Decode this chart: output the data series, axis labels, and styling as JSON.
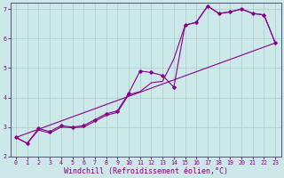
{
  "xlabel": "Windchill (Refroidissement éolien,°C)",
  "bg_color": "#cce8e8",
  "grid_color": "#aacccc",
  "line_color": "#880088",
  "xlim": [
    -0.5,
    23.5
  ],
  "ylim": [
    2.0,
    7.2
  ],
  "xticks": [
    0,
    1,
    2,
    3,
    4,
    5,
    6,
    7,
    8,
    9,
    10,
    11,
    12,
    13,
    14,
    15,
    16,
    17,
    18,
    19,
    20,
    21,
    22,
    23
  ],
  "yticks": [
    2,
    3,
    4,
    5,
    6,
    7
  ],
  "zigzag_x": [
    0,
    1,
    2,
    3,
    4,
    5,
    6,
    7,
    8,
    9,
    10,
    11,
    12,
    13,
    14,
    15,
    16,
    17,
    18,
    19,
    20,
    21,
    22,
    23
  ],
  "zigzag_y": [
    2.65,
    2.45,
    2.95,
    2.85,
    3.05,
    3.0,
    3.05,
    3.25,
    3.45,
    3.55,
    4.15,
    4.9,
    4.85,
    4.75,
    4.35,
    6.45,
    6.55,
    7.1,
    6.85,
    6.9,
    7.0,
    6.85,
    6.8,
    5.85
  ],
  "smooth_x": [
    0,
    1,
    2,
    3,
    4,
    5,
    6,
    7,
    8,
    9,
    10,
    11,
    12,
    13,
    14,
    15,
    16,
    17,
    18,
    19,
    20,
    21,
    22,
    23
  ],
  "smooth_y": [
    2.65,
    2.45,
    2.9,
    2.8,
    3.0,
    2.98,
    3.0,
    3.2,
    3.4,
    3.5,
    4.1,
    4.2,
    4.5,
    4.55,
    5.3,
    6.45,
    6.55,
    7.1,
    6.85,
    6.9,
    7.0,
    6.85,
    6.8,
    5.85
  ],
  "trend_x": [
    0,
    23
  ],
  "trend_y": [
    2.65,
    5.85
  ],
  "font_color": "#880088",
  "spine_color": "#555577",
  "tick_fontsize": 4.8,
  "label_fontsize": 6.0
}
